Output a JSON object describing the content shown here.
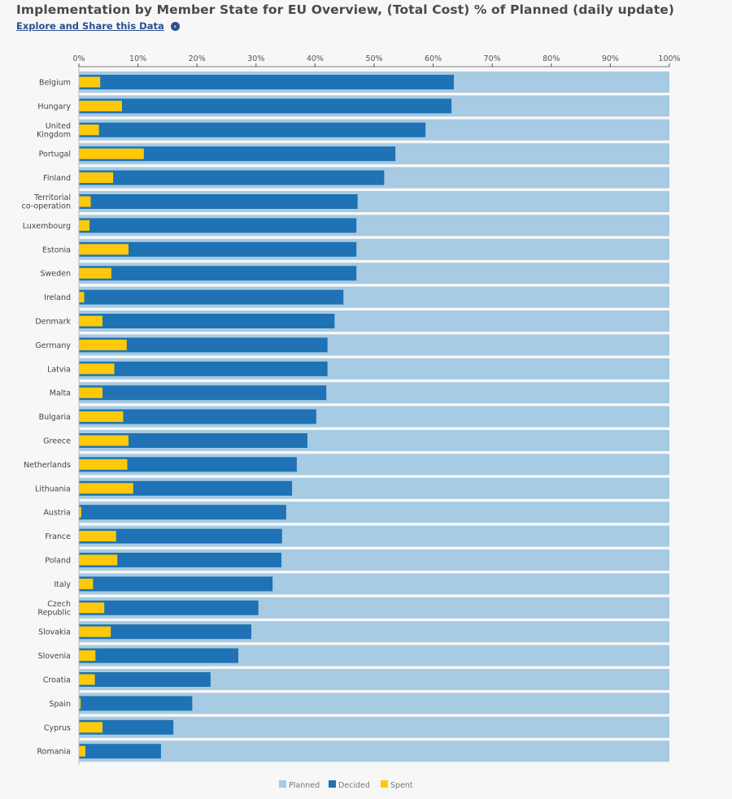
{
  "header": {
    "title": "Implementation by Member State for EU Overview, (Total Cost) % of Planned (daily update)",
    "explore_link": "Explore and Share this Data",
    "explore_icon": "circle-chevron-right-icon"
  },
  "colors": {
    "planned": "#a6cbe2",
    "decided": "#1f72b4",
    "spent": "#fdc90a",
    "background": "#f7f7f7"
  },
  "chart_data": {
    "type": "bar",
    "orientation": "horizontal",
    "stacking": "overlay",
    "title": "Implementation by Member State for EU Overview, (Total Cost) % of Planned (daily update)",
    "xlabel": "",
    "ylabel": "",
    "xlim": [
      0,
      100
    ],
    "x_ticks": [
      "0%",
      "10%",
      "20%",
      "30%",
      "40%",
      "50%",
      "60%",
      "70%",
      "80%",
      "90%",
      "100%"
    ],
    "x_axis_position": "top",
    "grid": false,
    "legend_position": "bottom-center",
    "categories": [
      [
        "Belgium"
      ],
      [
        "Hungary"
      ],
      [
        "United",
        "Kingdom"
      ],
      [
        "Portugal"
      ],
      [
        "Finland"
      ],
      [
        "Territorial",
        "co-operation"
      ],
      [
        "Luxembourg"
      ],
      [
        "Estonia"
      ],
      [
        "Sweden"
      ],
      [
        "Ireland"
      ],
      [
        "Denmark"
      ],
      [
        "Germany"
      ],
      [
        "Latvia"
      ],
      [
        "Malta"
      ],
      [
        "Bulgaria"
      ],
      [
        "Greece"
      ],
      [
        "Netherlands"
      ],
      [
        "Lithuania"
      ],
      [
        "Austria"
      ],
      [
        "France"
      ],
      [
        "Poland"
      ],
      [
        "Italy"
      ],
      [
        "Czech",
        "Republic"
      ],
      [
        "Slovakia"
      ],
      [
        "Slovenia"
      ],
      [
        "Croatia"
      ],
      [
        "Spain"
      ],
      [
        "Cyprus"
      ],
      [
        "Romania"
      ]
    ],
    "series": [
      {
        "name": "Planned",
        "values": [
          100,
          100,
          100,
          100,
          100,
          100,
          100,
          100,
          100,
          100,
          100,
          100,
          100,
          100,
          100,
          100,
          100,
          100,
          100,
          100,
          100,
          100,
          100,
          100,
          100,
          100,
          100,
          100,
          100
        ]
      },
      {
        "name": "Decided",
        "values": [
          63.5,
          63.1,
          58.7,
          53.6,
          51.7,
          47.2,
          47.0,
          47.0,
          47.0,
          44.8,
          43.3,
          42.1,
          42.1,
          41.9,
          40.2,
          38.7,
          36.9,
          36.1,
          35.1,
          34.4,
          34.3,
          32.8,
          30.4,
          29.2,
          27.0,
          22.3,
          19.2,
          16.0,
          13.9
        ]
      },
      {
        "name": "Spent",
        "values": [
          3.6,
          7.3,
          3.4,
          11.0,
          5.8,
          2.0,
          1.8,
          8.4,
          5.5,
          0.9,
          4.0,
          8.1,
          6.0,
          4.0,
          7.5,
          8.4,
          8.2,
          9.2,
          0.4,
          6.3,
          6.5,
          2.4,
          4.3,
          5.4,
          2.8,
          2.7,
          0.3,
          4.0,
          1.1
        ]
      }
    ],
    "legend": [
      "Planned",
      "Decided",
      "Spent"
    ]
  }
}
